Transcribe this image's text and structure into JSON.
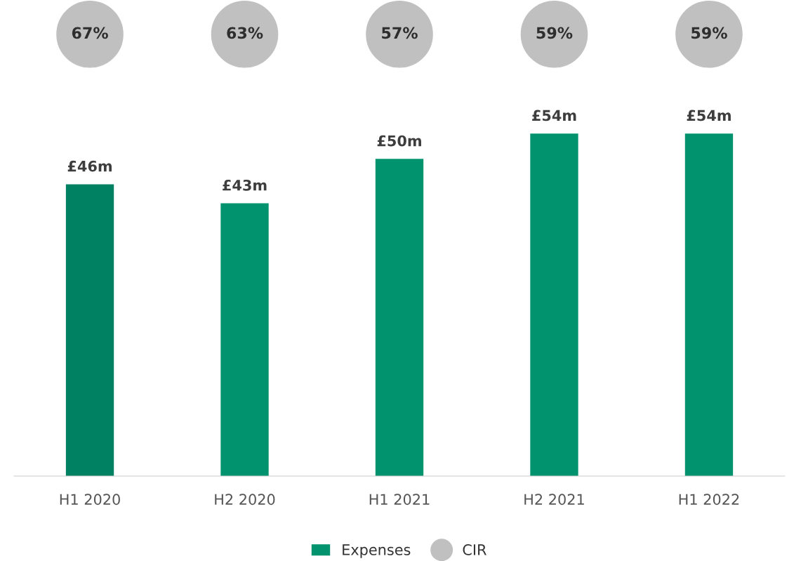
{
  "chart_data": {
    "type": "bar",
    "categories": [
      "H1 2020",
      "H2 2020",
      "H1 2021",
      "H2 2021",
      "H1 2022"
    ],
    "series": [
      {
        "name": "Expenses",
        "colors": [
          "#008262",
          "#00936e",
          "#00936e",
          "#00936e",
          "#00936e"
        ],
        "color": "#00936e",
        "values": [
          46,
          43,
          50,
          54,
          54
        ],
        "value_labels": [
          "£46m",
          "£43m",
          "£50m",
          "£54m",
          "£54m"
        ]
      },
      {
        "name": "CIR",
        "type": "scatter",
        "color": "#c0c0c0",
        "values": [
          null,
          null,
          null,
          null,
          null
        ]
      }
    ],
    "annotations": [
      "67%",
      "63%",
      "57%",
      "59%",
      "59%"
    ],
    "legend": "bottom",
    "grid": false,
    "tick_labels": "x"
  }
}
